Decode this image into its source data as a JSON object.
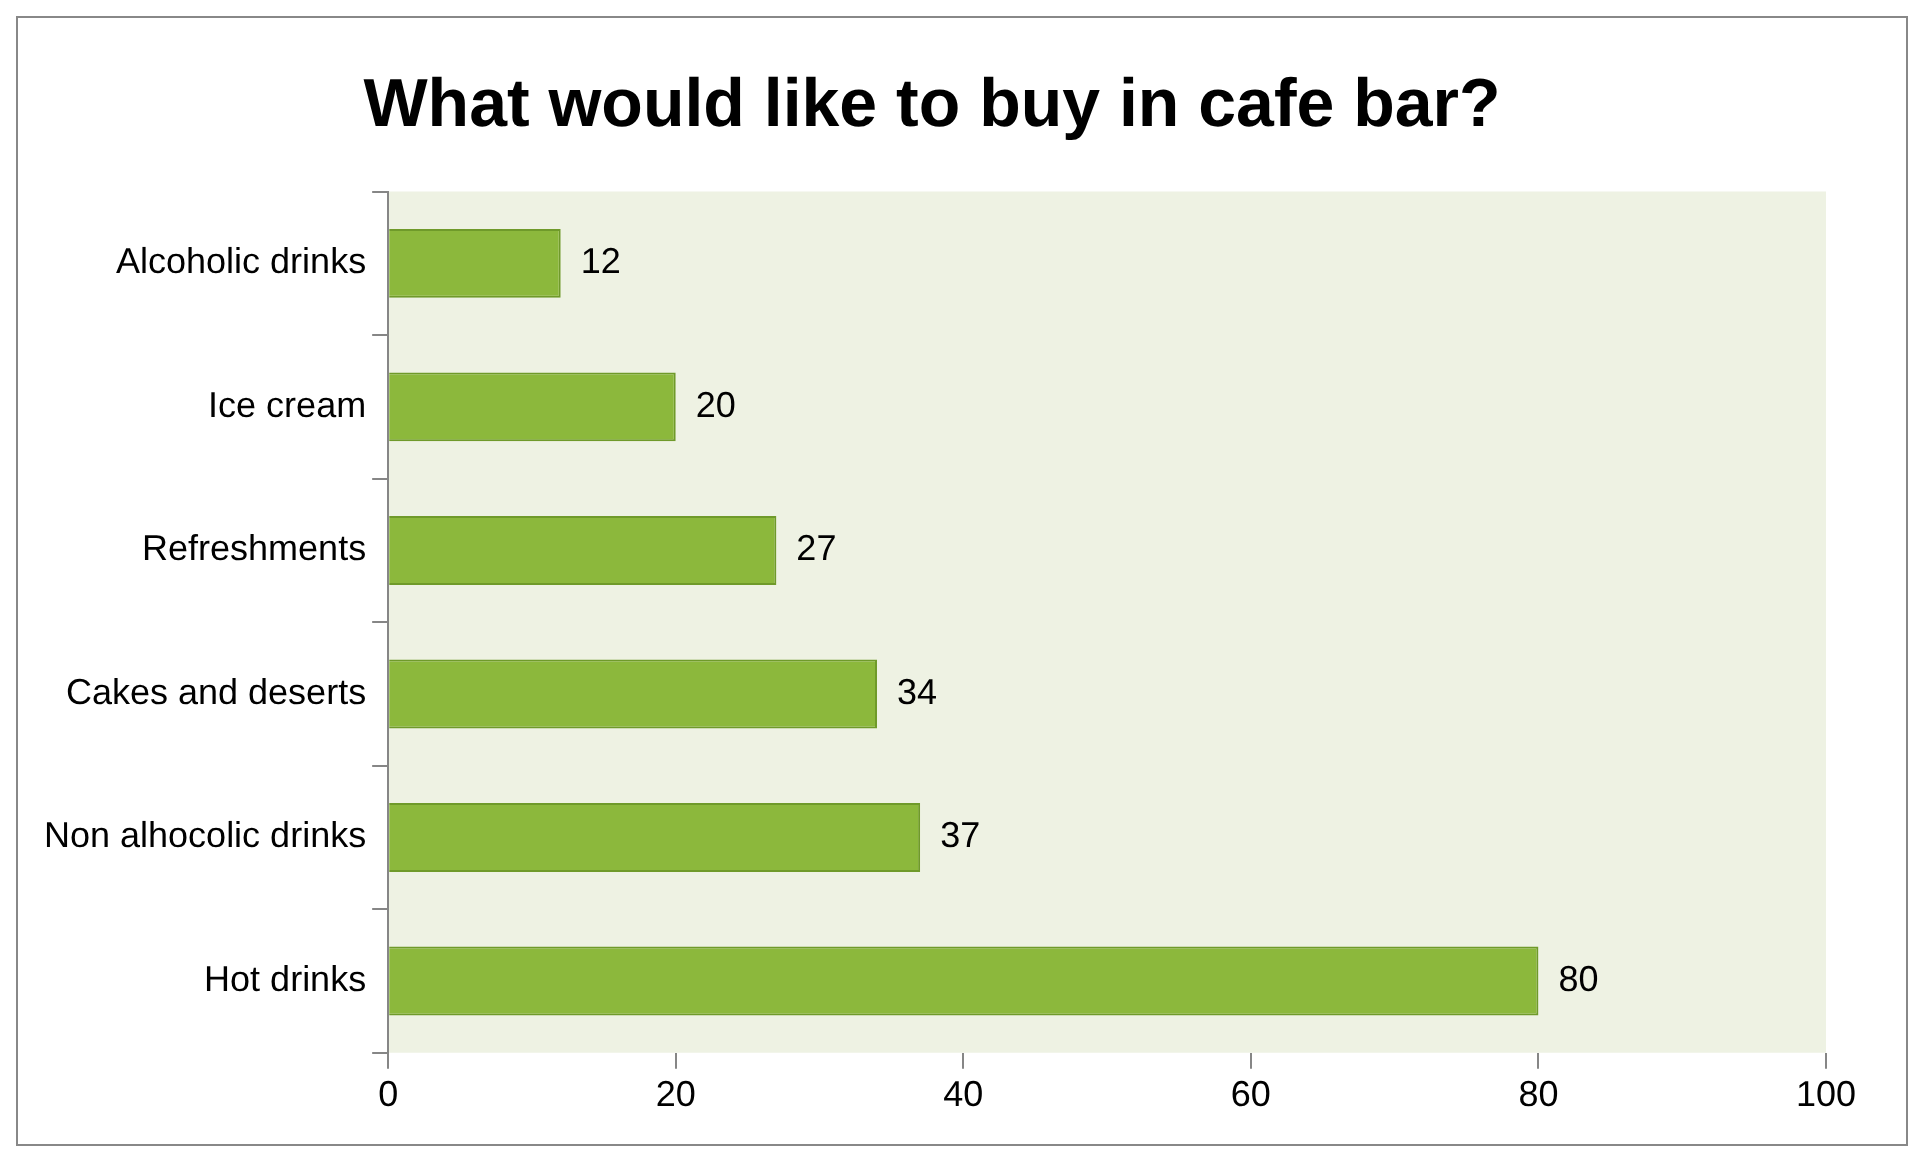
{
  "chart_data": {
    "type": "bar",
    "orientation": "horizontal",
    "title": "What would like to buy in cafe bar?",
    "categories": [
      "Alcoholic drinks",
      "Ice cream",
      "Refreshments",
      "Cakes and deserts",
      "Non alhocolic drinks",
      "Hot drinks"
    ],
    "values": [
      12,
      20,
      27,
      34,
      37,
      80
    ],
    "color": "#8cb83c",
    "xlim": [
      0,
      100
    ],
    "xticks": [
      0,
      20,
      40,
      60,
      80,
      100
    ],
    "grid": false,
    "data_labels": true
  }
}
